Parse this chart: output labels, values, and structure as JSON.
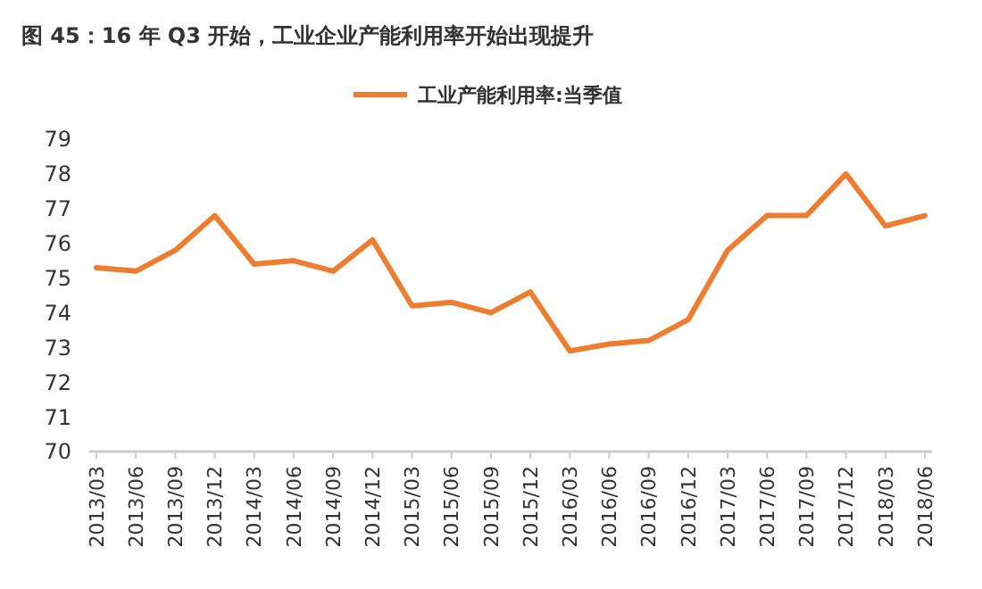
{
  "chart_data": {
    "type": "line",
    "title": "图 45：16 年 Q3 开始，工业企业产能利用率开始出现提升",
    "categories": [
      "2013/03",
      "2013/06",
      "2013/09",
      "2013/12",
      "2014/03",
      "2014/06",
      "2014/09",
      "2014/12",
      "2015/03",
      "2015/06",
      "2015/09",
      "2015/12",
      "2016/03",
      "2016/06",
      "2016/09",
      "2016/12",
      "2017/03",
      "2017/06",
      "2017/09",
      "2017/12",
      "2018/03",
      "2018/06"
    ],
    "series": [
      {
        "name": "工业产能利用率:当季值",
        "color": "#ed7d31",
        "values": [
          75.3,
          75.2,
          75.8,
          76.8,
          75.4,
          75.5,
          75.2,
          76.1,
          74.2,
          74.3,
          74.0,
          74.6,
          72.9,
          73.1,
          73.2,
          73.8,
          75.8,
          76.8,
          76.8,
          78.0,
          76.5,
          76.8
        ]
      }
    ],
    "ylim": [
      70,
      79
    ],
    "yticks": [
      70,
      71,
      72,
      73,
      74,
      75,
      76,
      77,
      78,
      79
    ],
    "grid": false,
    "legend": "top",
    "marker": "none",
    "line_style": "solid"
  }
}
